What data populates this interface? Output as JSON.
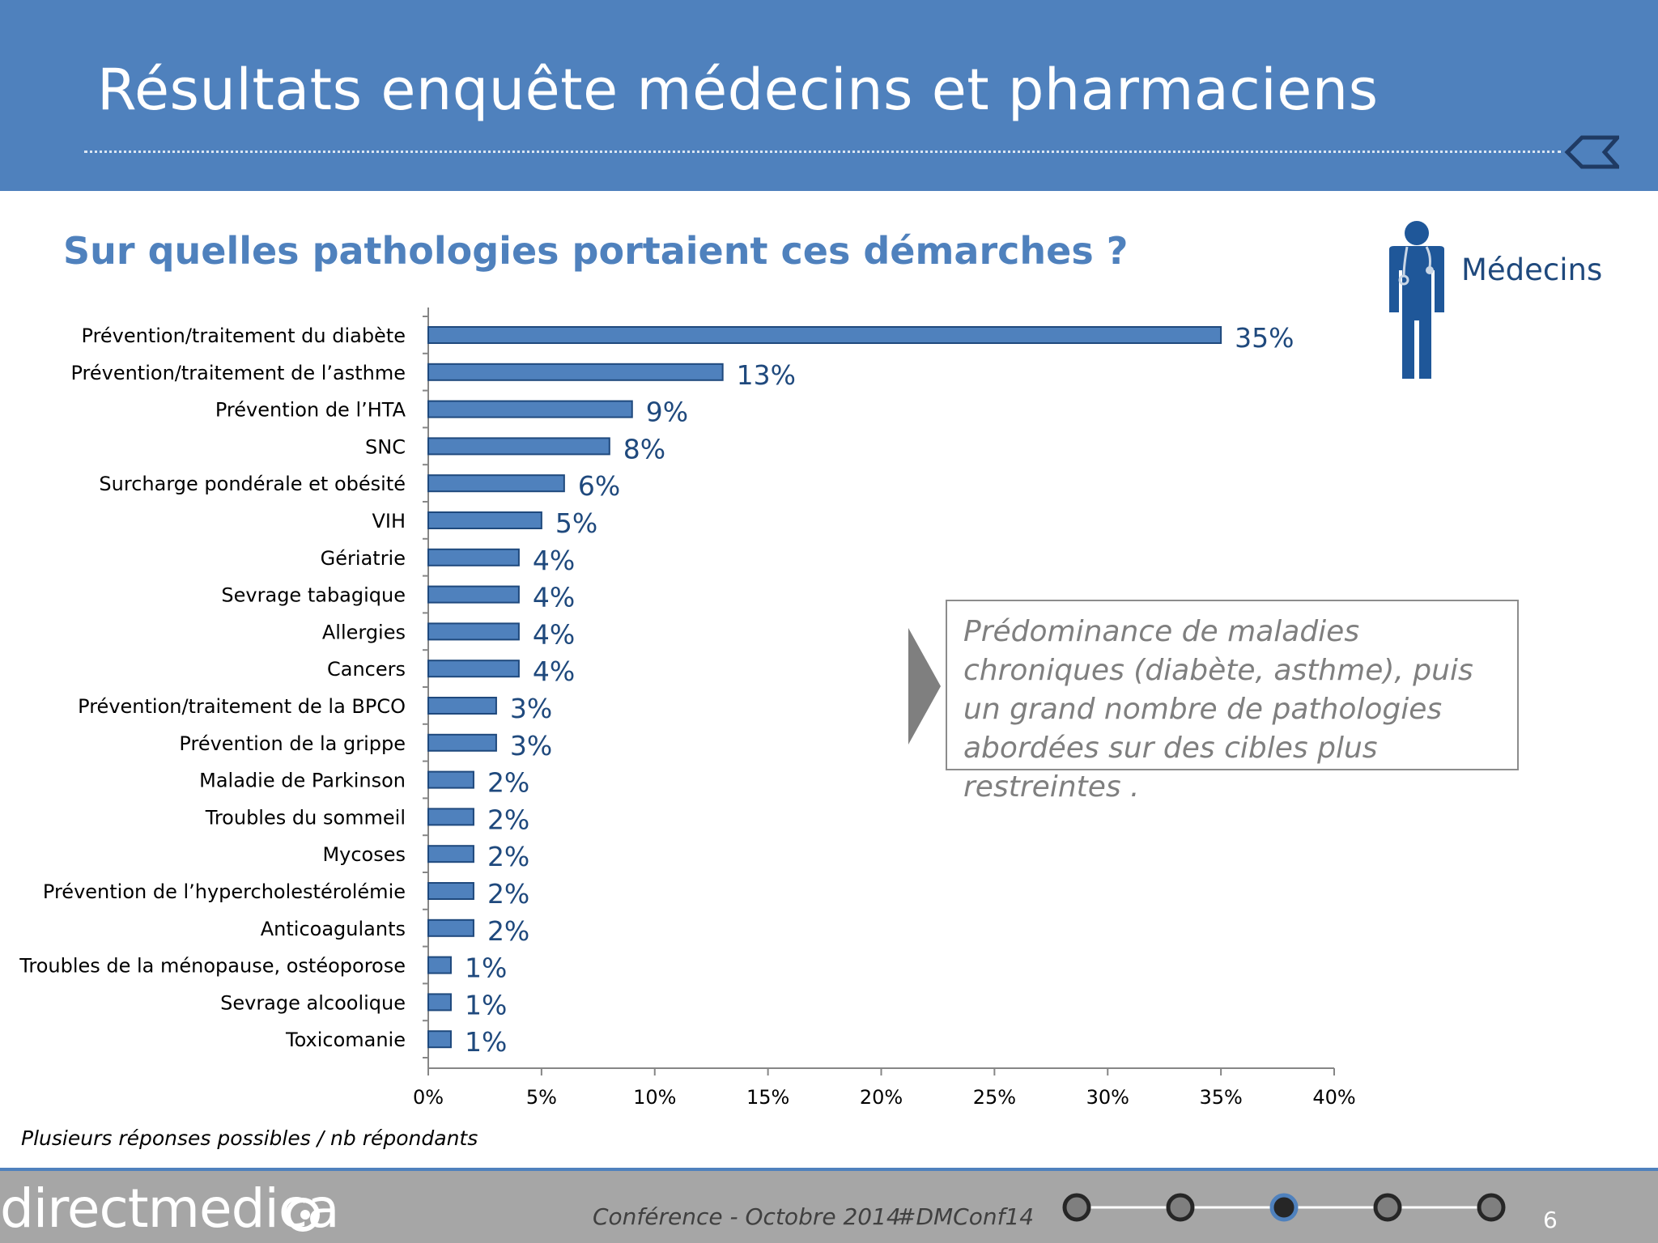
{
  "header": {
    "title": "Résultats enquête médecins et pharmaciens"
  },
  "subtitle": "Sur quelles pathologies portaient ces démarches ?",
  "audience": {
    "label": "Médecins",
    "icon": "doctor-icon"
  },
  "callout": {
    "text": "Prédominance de maladies chroniques (diabète, asthme), puis un grand nombre de pathologies abordées sur des cibles plus restreintes ."
  },
  "footnote": "Plusieurs réponses possibles / nb répondants",
  "footer": {
    "brand": "directmedica",
    "conference": "Conférence - Octobre 2014",
    "hashtag": "#DMConf14",
    "page_number": "6",
    "progress": {
      "steps": 5,
      "current": 3
    }
  },
  "colors": {
    "header_bg": "#4f81bd",
    "bar_fill": "#4f81bd",
    "bar_stroke": "#1f497d",
    "value_label": "#1f497d",
    "footer_bg": "#a6a6a6"
  },
  "chart_data": {
    "type": "bar",
    "orientation": "horizontal",
    "categories": [
      "Prévention/traitement du diabète",
      "Prévention/traitement de l’asthme",
      "Prévention de l’HTA",
      "SNC",
      "Surcharge pondérale et obésité",
      "VIH",
      "Gériatrie",
      "Sevrage tabagique",
      "Allergies",
      "Cancers",
      "Prévention/traitement de la BPCO",
      "Prévention de la grippe",
      "Maladie de Parkinson",
      "Troubles du sommeil",
      "Mycoses",
      "Prévention de l’hypercholestérolémie",
      "Anticoagulants",
      "Troubles de la ménopause, ostéoporose",
      "Sevrage alcoolique",
      "Toxicomanie"
    ],
    "values": [
      35,
      13,
      9,
      8,
      6,
      5,
      4,
      4,
      4,
      4,
      3,
      3,
      2,
      2,
      2,
      2,
      2,
      1,
      1,
      1
    ],
    "value_labels": [
      "35%",
      "13%",
      "9%",
      "8%",
      "6%",
      "5%",
      "4%",
      "4%",
      "4%",
      "4%",
      "3%",
      "3%",
      "2%",
      "2%",
      "2%",
      "2%",
      "2%",
      "1%",
      "1%",
      "1%"
    ],
    "xlim": [
      0,
      40
    ],
    "xticks": [
      0,
      5,
      10,
      15,
      20,
      25,
      30,
      35,
      40
    ],
    "xtick_labels": [
      "0%",
      "5%",
      "10%",
      "15%",
      "20%",
      "25%",
      "30%",
      "35%",
      "40%"
    ],
    "grid": false,
    "legend": "none"
  }
}
